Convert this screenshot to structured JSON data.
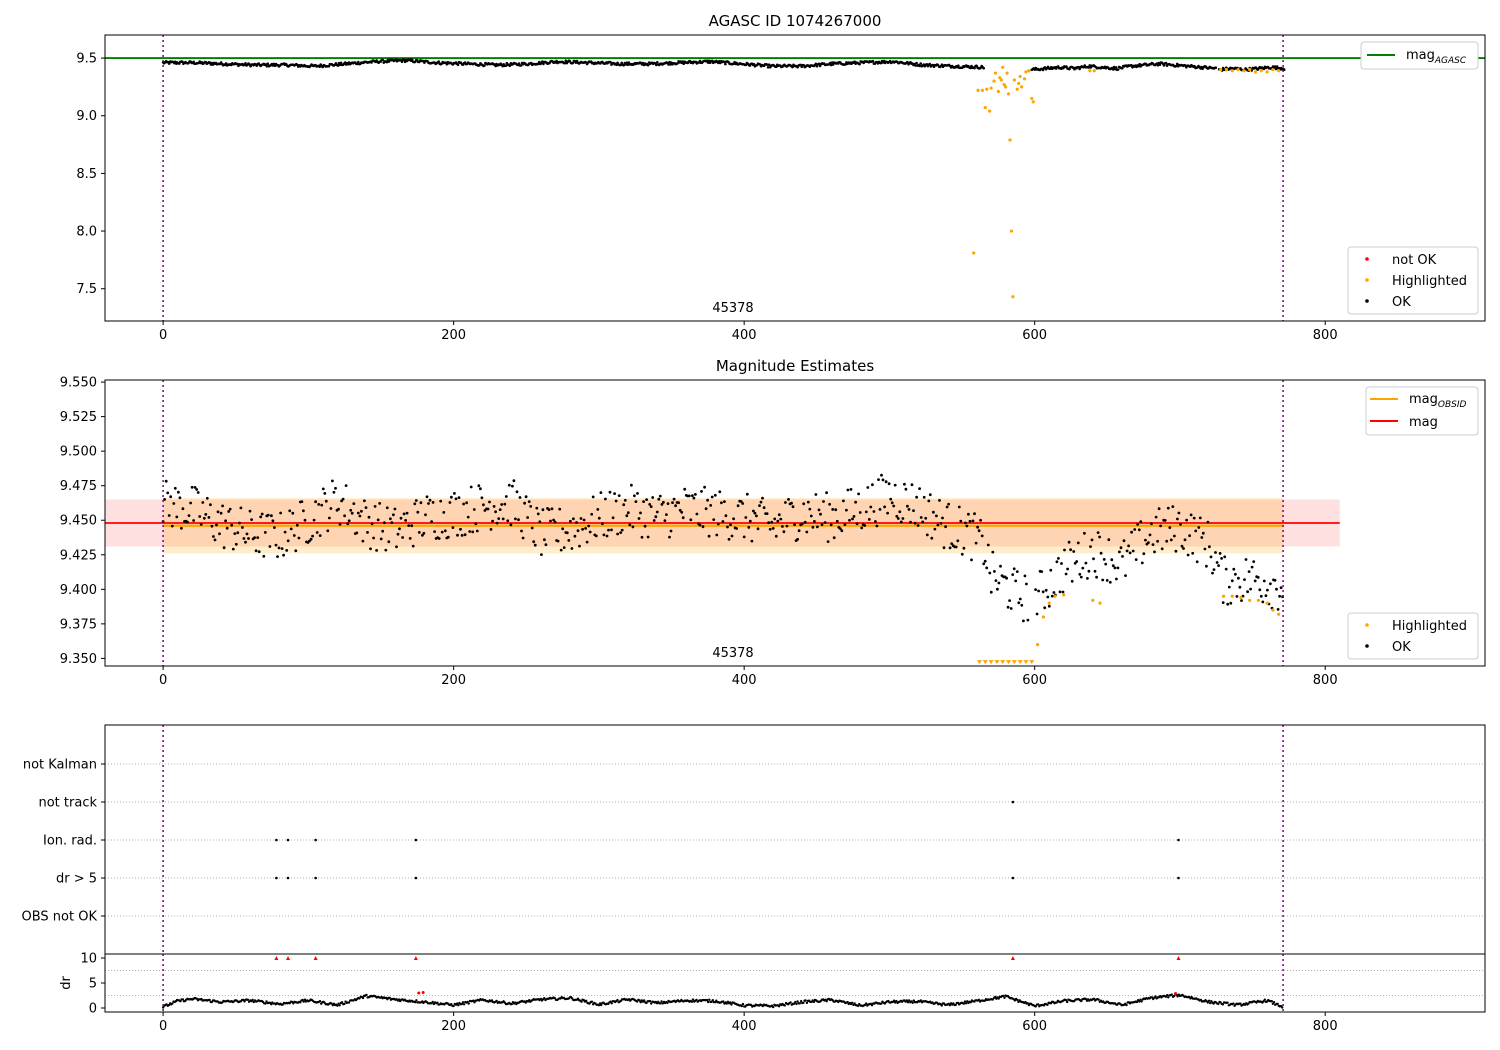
{
  "chart_data": [
    {
      "type": "scatter",
      "title": "AGASC ID 1074267000",
      "xlim": [
        -40,
        910
      ],
      "ylim": [
        7.22,
        9.7
      ],
      "xticks": [
        0,
        200,
        400,
        600,
        800
      ],
      "yticks": [
        7.5,
        8.0,
        8.5,
        9.0,
        9.5
      ],
      "ytick_labels": [
        "7.5",
        "8.0",
        "8.5",
        "9.0",
        "9.5"
      ],
      "annotation": {
        "text": "45378",
        "x": 385,
        "y": 7.3
      },
      "vlines": [
        0,
        771
      ],
      "legend_lines": [
        {
          "name": "mag",
          "subscript": "AGASC",
          "color": "#008000"
        }
      ],
      "legend_points": [
        {
          "name": "not OK",
          "color": "#ff0000"
        },
        {
          "name": "Highlighted",
          "color": "#ffa500"
        },
        {
          "name": "OK",
          "color": "#000000"
        }
      ],
      "legend_lines_position": "top-right",
      "legend_points_position": "bottom-right",
      "hline": {
        "y": 9.5,
        "color": "#008000"
      },
      "ok_segments": [
        {
          "x_start": 0,
          "x_end": 565,
          "values": [
            9.46,
            9.46,
            9.45,
            9.44,
            9.44,
            9.43,
            9.45,
            9.47,
            9.48,
            9.46,
            9.45,
            9.44,
            9.45,
            9.47,
            9.46,
            9.45,
            9.45,
            9.46,
            9.47,
            9.45,
            9.43,
            9.43,
            9.45,
            9.46,
            9.47,
            9.44,
            9.43,
            9.42
          ]
        },
        {
          "x_start": 598,
          "x_end": 725,
          "values": [
            9.4,
            9.41,
            9.42,
            9.41,
            9.43,
            9.42,
            9.41,
            9.43,
            9.44,
            9.45,
            9.44,
            9.43,
            9.42,
            9.41
          ]
        },
        {
          "x_start": 727,
          "x_end": 772,
          "values": [
            9.4,
            9.41,
            9.4,
            9.41,
            9.42,
            9.41
          ]
        }
      ],
      "highlighted": {
        "x": [
          558,
          561,
          564,
          566,
          567,
          569,
          570,
          572,
          573,
          575,
          576,
          577,
          578,
          579,
          580,
          581,
          582,
          583,
          584,
          585,
          586,
          588,
          589,
          590,
          591,
          593,
          594,
          596,
          598,
          599,
          638,
          641,
          728,
          732,
          736,
          740,
          744,
          748,
          752,
          756,
          760,
          764,
          768
        ],
        "y": [
          7.81,
          9.22,
          9.22,
          9.07,
          9.23,
          9.04,
          9.24,
          9.3,
          9.37,
          9.21,
          9.33,
          9.31,
          9.42,
          9.27,
          9.25,
          9.37,
          9.19,
          8.79,
          8.0,
          7.43,
          9.31,
          9.23,
          9.28,
          9.34,
          9.25,
          9.32,
          9.38,
          9.39,
          9.15,
          9.12,
          9.39,
          9.39,
          9.4,
          9.4,
          9.39,
          9.4,
          9.39,
          9.4,
          9.38,
          9.39,
          9.38,
          9.4,
          9.39
        ]
      }
    },
    {
      "type": "scatter",
      "title": "Magnitude Estimates",
      "xlim": [
        -40,
        910
      ],
      "ylim": [
        9.3445,
        9.5515
      ],
      "xticks": [
        0,
        200,
        400,
        600,
        800
      ],
      "yticks": [
        9.35,
        9.375,
        9.4,
        9.425,
        9.45,
        9.475,
        9.5,
        9.525,
        9.55
      ],
      "ytick_labels": [
        "9.350",
        "9.375",
        "9.400",
        "9.425",
        "9.450",
        "9.475",
        "9.500",
        "9.525",
        "9.550"
      ],
      "annotation": {
        "text": "45378",
        "x": 385,
        "y": 9.3535
      },
      "vlines": [
        0,
        771
      ],
      "legend_lines": [
        {
          "name": "mag",
          "subscript": "OBSID",
          "color": "#ffa500"
        },
        {
          "name": "mag",
          "subscript": "",
          "color": "#ff0000"
        }
      ],
      "legend_points": [
        {
          "name": "Highlighted",
          "color": "#ffa500"
        },
        {
          "name": "OK",
          "color": "#000000"
        }
      ],
      "mag_line": {
        "y": 9.448,
        "x_range": [
          -40,
          810
        ],
        "band": [
          9.431,
          9.465
        ]
      },
      "obsid_line": {
        "y": 9.446,
        "x_range": [
          0,
          771
        ],
        "band": [
          9.426,
          9.466
        ]
      },
      "ok_trend": {
        "x": [
          0,
          20,
          40,
          60,
          80,
          100,
          120,
          140,
          160,
          180,
          200,
          220,
          240,
          260,
          280,
          300,
          320,
          340,
          360,
          380,
          400,
          420,
          440,
          460,
          480,
          500,
          520,
          540,
          555,
          565,
          570,
          590,
          600,
          620,
          640,
          660,
          680,
          700,
          720,
          730,
          750,
          770
        ],
        "y": [
          9.462,
          9.458,
          9.447,
          9.44,
          9.438,
          9.45,
          9.465,
          9.448,
          9.442,
          9.452,
          9.455,
          9.46,
          9.463,
          9.44,
          9.443,
          9.452,
          9.458,
          9.453,
          9.458,
          9.455,
          9.452,
          9.446,
          9.455,
          9.452,
          9.458,
          9.468,
          9.46,
          9.446,
          9.44,
          9.432,
          9.41,
          9.395,
          9.392,
          9.415,
          9.428,
          9.418,
          9.44,
          9.445,
          9.432,
          9.406,
          9.408,
          9.402
        ]
      },
      "highlighted": {
        "x": [
          562,
          566,
          570,
          574,
          578,
          582,
          586,
          590,
          594,
          598,
          602,
          606,
          610,
          614,
          620,
          640,
          645,
          730,
          736,
          742,
          748,
          754,
          760,
          764,
          768
        ],
        "y": [
          9.3473,
          9.3473,
          9.3473,
          9.3473,
          9.3473,
          9.3473,
          9.3473,
          9.3473,
          9.3473,
          9.3473,
          9.36,
          9.38,
          9.39,
          9.395,
          9.396,
          9.392,
          9.39,
          9.395,
          9.395,
          9.394,
          9.392,
          9.392,
          9.39,
          9.385,
          9.382
        ]
      }
    },
    {
      "type": "scatter",
      "title": "",
      "xlim": [
        -40,
        910
      ],
      "categories": [
        "not Kalman",
        "not track",
        "Ion. rad.",
        "dr > 5",
        "OBS not OK"
      ],
      "vlines": [
        0,
        771
      ],
      "flags": {
        "not Kalman": [],
        "not track": [
          585
        ],
        "Ion. rad.": [
          78,
          86,
          105,
          174,
          699
        ],
        "dr > 5": [
          78,
          86,
          105,
          174,
          585,
          699
        ]
      }
    },
    {
      "type": "line",
      "title": "",
      "ylabel": "dr",
      "xlim": [
        -40,
        910
      ],
      "ylim": [
        -0.8,
        10.8
      ],
      "xticks": [
        0,
        200,
        400,
        600,
        800
      ],
      "yticks": [
        0,
        5,
        10
      ],
      "ytick_labels": [
        "0",
        "5",
        "10"
      ],
      "vlines": [
        0,
        771
      ],
      "dr_trend": {
        "x": [
          0,
          10,
          20,
          40,
          60,
          80,
          100,
          120,
          140,
          160,
          180,
          200,
          220,
          240,
          260,
          280,
          300,
          320,
          340,
          360,
          380,
          400,
          420,
          440,
          460,
          480,
          500,
          520,
          540,
          560,
          580,
          600,
          620,
          640,
          660,
          680,
          700,
          720,
          740,
          760,
          771
        ],
        "y": [
          0.2,
          1.4,
          1.8,
          1.2,
          1.5,
          0.8,
          1.5,
          0.6,
          2.4,
          1.7,
          1.2,
          0.6,
          1.6,
          0.9,
          1.7,
          2.0,
          0.7,
          1.7,
          1.0,
          1.5,
          1.4,
          0.5,
          0.4,
          1.2,
          1.6,
          0.5,
          1.2,
          1.3,
          0.6,
          1.4,
          2.3,
          0.4,
          1.4,
          1.7,
          0.6,
          2.0,
          2.6,
          1.2,
          0.6,
          1.5,
          0.2
        ]
      },
      "clipped_x": [
        78,
        86,
        105,
        174,
        585,
        699
      ],
      "red_points": {
        "x": [
          176,
          179,
          697
        ],
        "y": [
          3.0,
          3.1,
          2.9
        ]
      }
    }
  ]
}
